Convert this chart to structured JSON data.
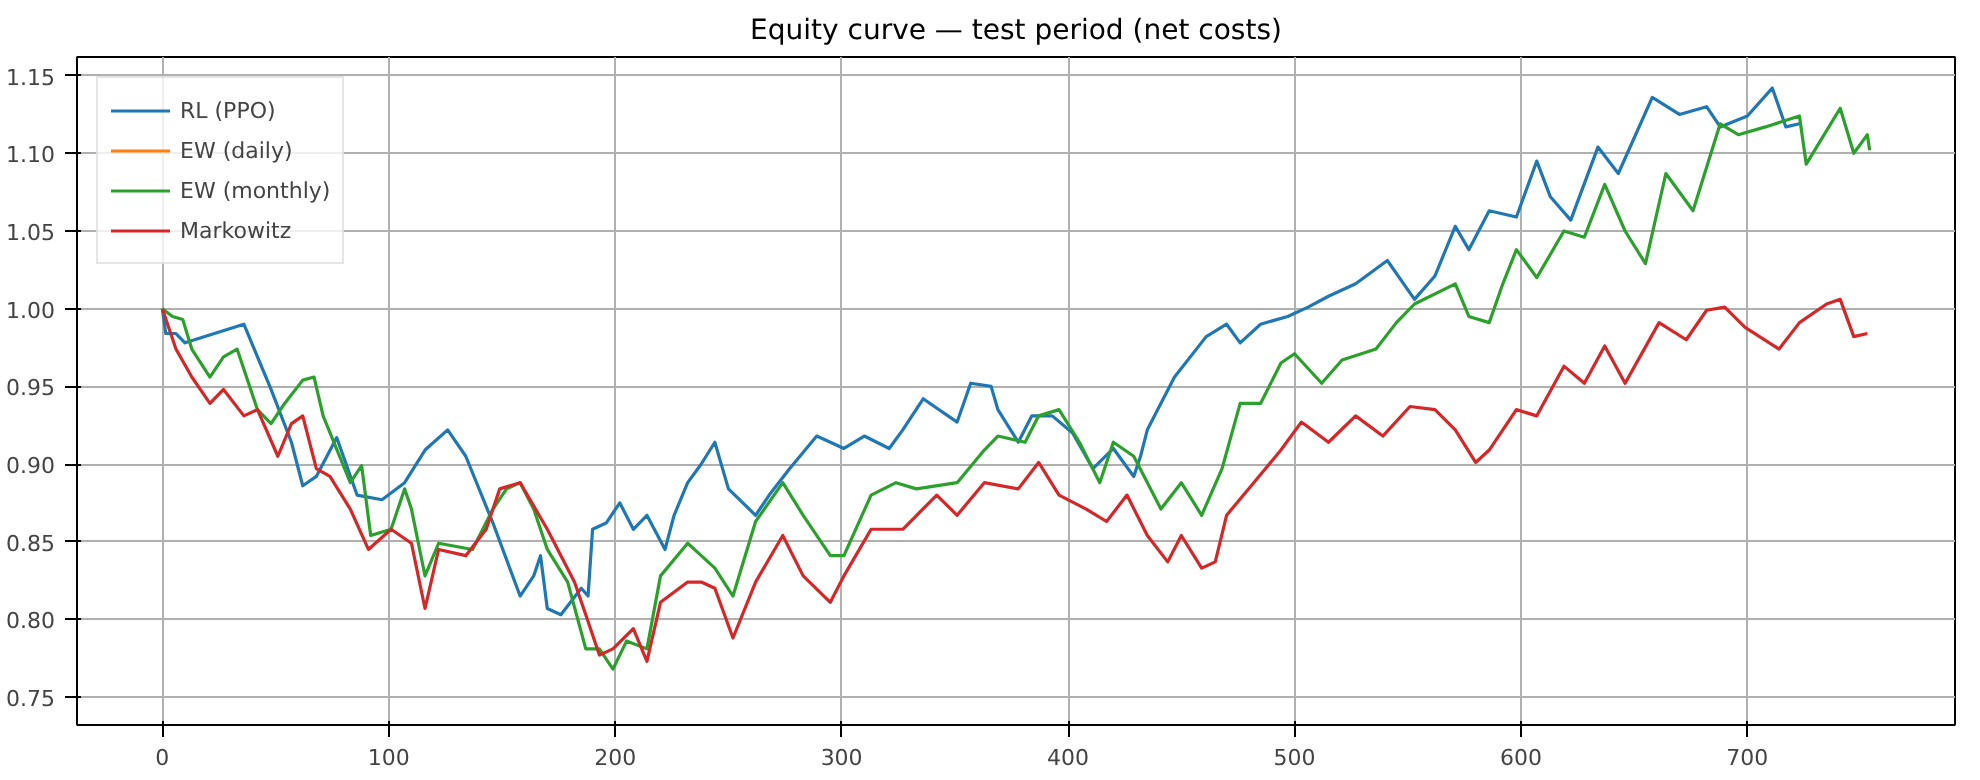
{
  "chart_data": {
    "type": "line",
    "title": "Equity curve — test period (net costs)",
    "xlim": [
      -37.7,
      791.7
    ],
    "ylim": [
      0.732,
      1.162
    ],
    "xticks": [
      0,
      100,
      200,
      300,
      400,
      500,
      600,
      700
    ],
    "yticks": [
      {
        "value": 0.75,
        "label": "0.75"
      },
      {
        "value": 0.8,
        "label": "0.80"
      },
      {
        "value": 0.85,
        "label": "0.85"
      },
      {
        "value": 0.9,
        "label": "0.90"
      },
      {
        "value": 0.95,
        "label": "0.95"
      },
      {
        "value": 1.0,
        "label": "1.00"
      },
      {
        "value": 1.05,
        "label": "1.05"
      },
      {
        "value": 1.1,
        "label": "1.10"
      },
      {
        "value": 1.15,
        "label": "1.15"
      }
    ],
    "grid": true,
    "legend": "top left",
    "marker": "none",
    "line_style": "solid",
    "series": [
      {
        "name": "RL (PPO)",
        "color": "#1f77b4",
        "x": [
          0,
          1.5,
          6,
          10,
          36,
          48,
          57,
          62,
          68,
          77,
          86,
          97,
          107,
          116,
          126,
          134,
          146,
          158,
          164,
          167,
          170,
          176,
          185,
          188,
          190,
          196,
          202,
          208,
          214,
          222,
          226,
          232,
          238,
          244,
          250,
          262,
          268,
          277,
          289,
          301,
          310,
          321,
          327,
          336,
          351,
          357,
          366,
          369,
          378,
          384,
          393,
          402,
          411,
          420,
          429,
          432,
          435,
          447,
          461,
          470,
          476,
          485,
          497,
          506,
          515,
          527,
          541,
          553,
          562,
          571,
          577,
          586,
          598,
          607,
          613,
          622,
          634,
          643,
          658,
          670,
          682,
          688,
          700,
          711,
          717,
          723
        ],
        "values": [
          1.0,
          0.984,
          0.984,
          0.978,
          0.99,
          0.948,
          0.914,
          0.886,
          0.892,
          0.917,
          0.88,
          0.877,
          0.888,
          0.909,
          0.922,
          0.905,
          0.862,
          0.815,
          0.828,
          0.841,
          0.807,
          0.803,
          0.82,
          0.815,
          0.858,
          0.862,
          0.875,
          0.858,
          0.867,
          0.845,
          0.867,
          0.888,
          0.9,
          0.914,
          0.884,
          0.867,
          0.88,
          0.897,
          0.918,
          0.91,
          0.918,
          0.91,
          0.922,
          0.942,
          0.927,
          0.952,
          0.95,
          0.935,
          0.914,
          0.931,
          0.931,
          0.92,
          0.897,
          0.91,
          0.892,
          0.905,
          0.922,
          0.956,
          0.982,
          0.99,
          0.978,
          0.99,
          0.995,
          1.001,
          1.008,
          1.016,
          1.031,
          1.006,
          1.021,
          1.053,
          1.038,
          1.063,
          1.059,
          1.095,
          1.072,
          1.057,
          1.104,
          1.087,
          1.136,
          1.125,
          1.13,
          1.117,
          1.124,
          1.142,
          1.117,
          1.119
        ]
      },
      {
        "name": "EW (daily)",
        "color": "#ff7f0e",
        "values": [
          null
        ]
      },
      {
        "name": "EW (monthly)",
        "color": "#2ca02c",
        "x": [
          0,
          4.5,
          9,
          13,
          21,
          27,
          33,
          42,
          48,
          54,
          62,
          67,
          71,
          83,
          88,
          92,
          101,
          107,
          110,
          116,
          122,
          137,
          146,
          152,
          158,
          164,
          170,
          179,
          187,
          193,
          199,
          205,
          214,
          220,
          232,
          238,
          244,
          252,
          262,
          274,
          283,
          295,
          301,
          313,
          324,
          333,
          351,
          363,
          369,
          381,
          387,
          396,
          405,
          414,
          420,
          429,
          441,
          450,
          459,
          468,
          476,
          485,
          494,
          500,
          512,
          521,
          536,
          545,
          553,
          571,
          577,
          586,
          592,
          598,
          607,
          619,
          628,
          637,
          646,
          655,
          664,
          676,
          688,
          696,
          708,
          723,
          726,
          741,
          747,
          753,
          754
        ],
        "values": [
          1.0,
          0.995,
          0.993,
          0.974,
          0.956,
          0.969,
          0.974,
          0.935,
          0.926,
          0.939,
          0.954,
          0.956,
          0.931,
          0.888,
          0.899,
          0.854,
          0.858,
          0.884,
          0.871,
          0.828,
          0.849,
          0.845,
          0.871,
          0.884,
          0.888,
          0.871,
          0.845,
          0.824,
          0.781,
          0.781,
          0.768,
          0.786,
          0.781,
          0.828,
          0.849,
          0.841,
          0.833,
          0.815,
          0.863,
          0.888,
          0.867,
          0.841,
          0.841,
          0.88,
          0.888,
          0.884,
          0.888,
          0.909,
          0.918,
          0.914,
          0.931,
          0.935,
          0.914,
          0.888,
          0.914,
          0.905,
          0.871,
          0.888,
          0.867,
          0.897,
          0.939,
          0.939,
          0.965,
          0.971,
          0.952,
          0.967,
          0.974,
          0.991,
          1.003,
          1.016,
          0.995,
          0.991,
          1.016,
          1.038,
          1.02,
          1.05,
          1.046,
          1.08,
          1.05,
          1.029,
          1.087,
          1.063,
          1.119,
          1.112,
          1.117,
          1.124,
          1.093,
          1.129,
          1.1,
          1.112,
          1.102
        ]
      },
      {
        "name": "Markowitz",
        "color": "#d62728",
        "x": [
          0,
          6,
          13,
          21,
          27,
          36,
          42,
          51,
          57,
          62,
          68,
          74,
          83,
          91,
          101,
          110,
          116,
          122,
          134,
          143,
          149,
          158,
          170,
          182,
          187,
          193,
          199,
          208,
          214,
          220,
          232,
          238,
          244,
          252,
          262,
          274,
          283,
          295,
          301,
          313,
          327,
          342,
          351,
          363,
          378,
          387,
          396,
          408,
          417,
          426,
          435,
          444,
          450,
          459,
          465,
          470,
          482,
          494,
          503,
          515,
          527,
          539,
          551,
          562,
          571,
          580,
          586,
          598,
          607,
          619,
          628,
          637,
          646,
          661,
          673,
          682,
          690,
          699,
          714,
          723,
          735,
          741,
          747,
          753
        ],
        "values": [
          1.0,
          0.974,
          0.956,
          0.939,
          0.948,
          0.931,
          0.935,
          0.905,
          0.926,
          0.931,
          0.897,
          0.892,
          0.871,
          0.845,
          0.858,
          0.849,
          0.807,
          0.845,
          0.841,
          0.858,
          0.884,
          0.888,
          0.858,
          0.824,
          0.803,
          0.777,
          0.781,
          0.794,
          0.773,
          0.811,
          0.824,
          0.824,
          0.82,
          0.788,
          0.824,
          0.854,
          0.828,
          0.811,
          0.828,
          0.858,
          0.858,
          0.88,
          0.867,
          0.888,
          0.884,
          0.901,
          0.88,
          0.871,
          0.863,
          0.88,
          0.854,
          0.837,
          0.854,
          0.833,
          0.837,
          0.867,
          0.888,
          0.909,
          0.927,
          0.914,
          0.931,
          0.918,
          0.937,
          0.935,
          0.922,
          0.901,
          0.909,
          0.935,
          0.931,
          0.963,
          0.952,
          0.976,
          0.952,
          0.991,
          0.98,
          0.999,
          1.001,
          0.988,
          0.974,
          0.991,
          1.003,
          1.006,
          0.982,
          0.984
        ]
      }
    ]
  }
}
